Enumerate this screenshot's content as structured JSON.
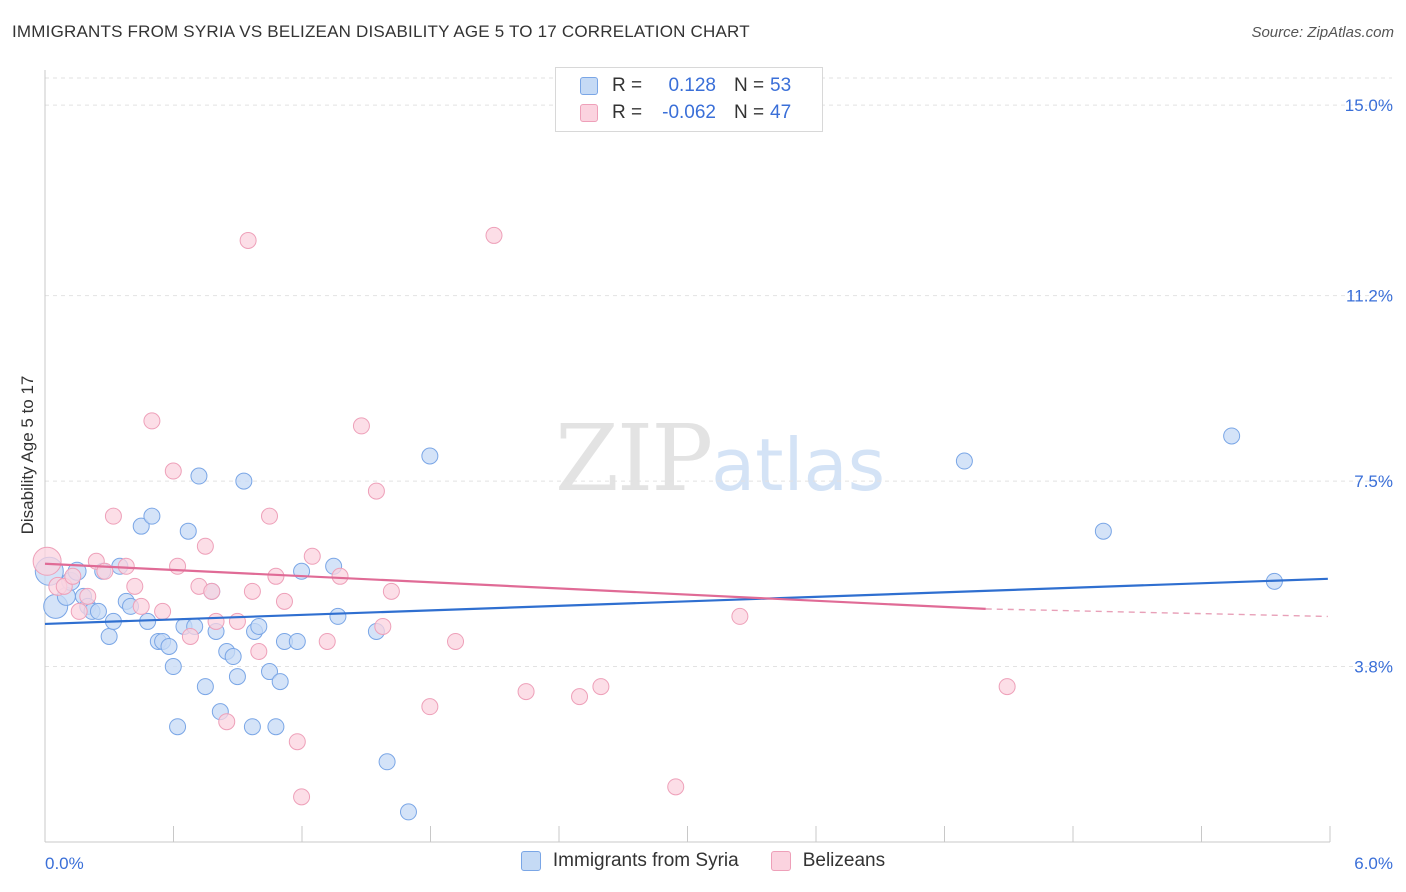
{
  "chart_data": {
    "type": "scatter",
    "title": "IMMIGRANTS FROM SYRIA VS BELIZEAN DISABILITY AGE 5 TO 17 CORRELATION CHART",
    "source": "Source: ZipAtlas.com",
    "xlabel": "",
    "ylabel": "Disability Age 5 to 17",
    "xlim": [
      0,
      6.3
    ],
    "ylim": [
      0.3,
      15.7
    ],
    "x_tick_labels": [
      "0.0%",
      "6.0%"
    ],
    "y_ticks": [
      3.8,
      7.5,
      11.2,
      15.0
    ],
    "y_tick_labels": [
      "3.8%",
      "7.5%",
      "11.2%",
      "15.0%"
    ],
    "legend": {
      "rows": [
        {
          "r_label": "R =",
          "r_value": "0.128",
          "n_label": "N =",
          "n_value": "53"
        },
        {
          "r_label": "R =",
          "r_value": "-0.062",
          "n_label": "N =",
          "n_value": "47"
        }
      ]
    },
    "series": [
      {
        "name": "Immigrants from Syria",
        "color": "#7aa6e6",
        "fill": "#c5daf5",
        "trend": {
          "x": [
            0,
            6.0
          ],
          "y": [
            4.65,
            5.55
          ],
          "color": "#2f6fd0"
        },
        "points": [
          [
            0.02,
            5.7,
            14
          ],
          [
            0.05,
            5.0,
            12
          ],
          [
            0.1,
            5.2,
            9
          ],
          [
            0.12,
            5.5,
            9
          ],
          [
            0.15,
            5.7,
            9
          ],
          [
            0.18,
            5.2,
            8
          ],
          [
            0.2,
            5.0,
            8
          ],
          [
            0.22,
            4.9,
            8
          ],
          [
            0.25,
            4.9,
            8
          ],
          [
            0.27,
            5.7,
            8
          ],
          [
            0.3,
            4.4,
            8
          ],
          [
            0.32,
            4.7,
            8
          ],
          [
            0.35,
            5.8,
            8
          ],
          [
            0.38,
            5.1,
            8
          ],
          [
            0.4,
            5.0,
            8
          ],
          [
            0.45,
            6.6,
            8
          ],
          [
            0.48,
            4.7,
            8
          ],
          [
            0.5,
            6.8,
            8
          ],
          [
            0.53,
            4.3,
            8
          ],
          [
            0.55,
            4.3,
            8
          ],
          [
            0.58,
            4.2,
            8
          ],
          [
            0.6,
            3.8,
            8
          ],
          [
            0.62,
            2.6,
            8
          ],
          [
            0.65,
            4.6,
            8
          ],
          [
            0.67,
            6.5,
            8
          ],
          [
            0.7,
            4.6,
            8
          ],
          [
            0.72,
            7.6,
            8
          ],
          [
            0.75,
            3.4,
            8
          ],
          [
            0.78,
            5.3,
            8
          ],
          [
            0.8,
            4.5,
            8
          ],
          [
            0.82,
            2.9,
            8
          ],
          [
            0.85,
            4.1,
            8
          ],
          [
            0.88,
            4.0,
            8
          ],
          [
            0.9,
            3.6,
            8
          ],
          [
            0.93,
            7.5,
            8
          ],
          [
            0.97,
            2.6,
            8
          ],
          [
            0.98,
            4.5,
            8
          ],
          [
            1.0,
            4.6,
            8
          ],
          [
            1.05,
            3.7,
            8
          ],
          [
            1.08,
            2.6,
            8
          ],
          [
            1.1,
            3.5,
            8
          ],
          [
            1.12,
            4.3,
            8
          ],
          [
            1.18,
            4.3,
            8
          ],
          [
            1.2,
            5.7,
            8
          ],
          [
            1.35,
            5.8,
            8
          ],
          [
            1.37,
            4.8,
            8
          ],
          [
            1.55,
            4.5,
            8
          ],
          [
            1.6,
            1.9,
            8
          ],
          [
            1.7,
            0.9,
            8
          ],
          [
            1.8,
            8.0,
            8
          ],
          [
            4.3,
            7.9,
            8
          ],
          [
            4.95,
            6.5,
            8
          ],
          [
            5.55,
            8.4,
            8
          ],
          [
            5.75,
            5.5,
            8
          ]
        ]
      },
      {
        "name": "Belizeans",
        "color": "#eea0b9",
        "fill": "#fbd3df",
        "trend": {
          "x": [
            0,
            4.4
          ],
          "y": [
            5.85,
            4.95
          ],
          "color": "#e06b96"
        },
        "trend_dashed": {
          "x": [
            4.4,
            6.0
          ],
          "y": [
            4.95,
            4.8
          ],
          "color": "#e8a0b8"
        },
        "points": [
          [
            0.01,
            5.9,
            14
          ],
          [
            0.06,
            5.4,
            9
          ],
          [
            0.09,
            5.4,
            8
          ],
          [
            0.13,
            5.6,
            8
          ],
          [
            0.16,
            4.9,
            8
          ],
          [
            0.2,
            5.2,
            8
          ],
          [
            0.24,
            5.9,
            8
          ],
          [
            0.28,
            5.7,
            8
          ],
          [
            0.32,
            6.8,
            8
          ],
          [
            0.38,
            5.8,
            8
          ],
          [
            0.42,
            5.4,
            8
          ],
          [
            0.45,
            5.0,
            8
          ],
          [
            0.5,
            8.7,
            8
          ],
          [
            0.55,
            4.9,
            8
          ],
          [
            0.6,
            7.7,
            8
          ],
          [
            0.62,
            5.8,
            8
          ],
          [
            0.68,
            4.4,
            8
          ],
          [
            0.72,
            5.4,
            8
          ],
          [
            0.75,
            6.2,
            8
          ],
          [
            0.78,
            5.3,
            8
          ],
          [
            0.8,
            4.7,
            8
          ],
          [
            0.85,
            2.7,
            8
          ],
          [
            0.9,
            4.7,
            8
          ],
          [
            0.95,
            12.3,
            8
          ],
          [
            0.97,
            5.3,
            8
          ],
          [
            1.0,
            4.1,
            8
          ],
          [
            1.05,
            6.8,
            8
          ],
          [
            1.08,
            5.6,
            8
          ],
          [
            1.12,
            5.1,
            8
          ],
          [
            1.18,
            2.3,
            8
          ],
          [
            1.2,
            1.2,
            8
          ],
          [
            1.25,
            6.0,
            8
          ],
          [
            1.32,
            4.3,
            8
          ],
          [
            1.38,
            5.6,
            8
          ],
          [
            1.48,
            8.6,
            8
          ],
          [
            1.55,
            7.3,
            8
          ],
          [
            1.58,
            4.6,
            8
          ],
          [
            1.62,
            5.3,
            8
          ],
          [
            1.8,
            3.0,
            8
          ],
          [
            1.92,
            4.3,
            8
          ],
          [
            2.1,
            12.4,
            8
          ],
          [
            2.25,
            3.3,
            8
          ],
          [
            2.5,
            3.2,
            8
          ],
          [
            2.6,
            3.4,
            8
          ],
          [
            2.95,
            1.4,
            8
          ],
          [
            3.25,
            4.8,
            8
          ],
          [
            4.5,
            3.4,
            8
          ]
        ]
      }
    ]
  }
}
